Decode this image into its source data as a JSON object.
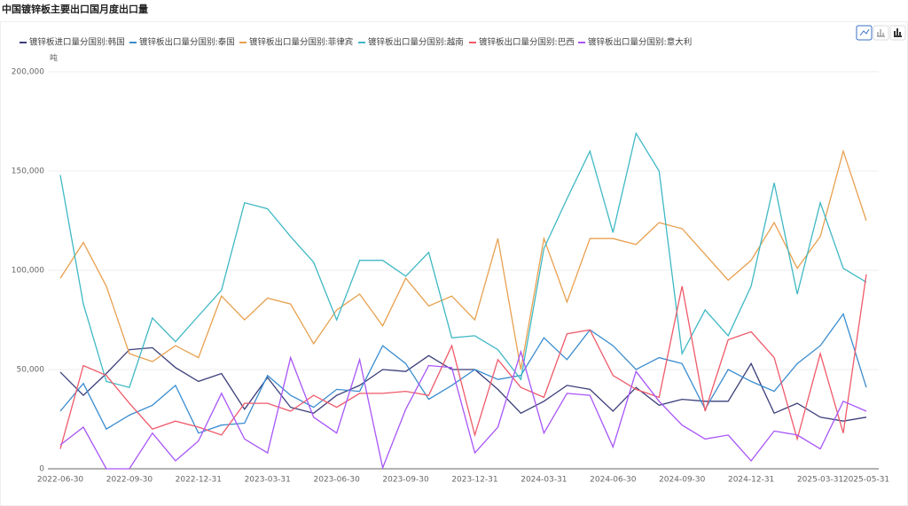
{
  "chart_data": {
    "type": "line",
    "title": "中国镀锌板主要出口国月度出口量",
    "y_unit": "吨",
    "categories": [
      "2022-06-30",
      null,
      null,
      "2022-09-30",
      null,
      null,
      "2022-12-31",
      null,
      null,
      "2023-03-31",
      null,
      null,
      "2023-06-30",
      null,
      null,
      "2023-09-30",
      null,
      null,
      "2023-12-31",
      null,
      null,
      "2024-03-31",
      null,
      null,
      "2024-06-30",
      null,
      null,
      "2024-09-30",
      null,
      null,
      "2024-12-31",
      null,
      null,
      "2025-03-31",
      null,
      "2025-05-31"
    ],
    "series": [
      {
        "name": "镀锌板进口量分国别:韩国",
        "color": "#3b3f7a",
        "values": [
          48700,
          37000,
          48000,
          60000,
          61000,
          51000,
          44000,
          48000,
          30000,
          46000,
          31000,
          28000,
          37000,
          42000,
          50000,
          49000,
          57000,
          50000,
          50000,
          40000,
          28000,
          34000,
          42000,
          40000,
          29000,
          41000,
          32000,
          35000,
          34000,
          34000,
          53000,
          28000,
          33000,
          26000,
          24000,
          26000
        ]
      },
      {
        "name": "镀锌板出口量分国别:泰国",
        "color": "#3a8ccf",
        "values": [
          29000,
          43000,
          20000,
          27000,
          32000,
          42000,
          18000,
          22000,
          23000,
          47000,
          37000,
          31000,
          40000,
          39000,
          62000,
          53000,
          35000,
          42000,
          50000,
          45000,
          47000,
          66000,
          55000,
          70000,
          62000,
          50000,
          56000,
          53000,
          30000,
          50000,
          44000,
          39000,
          53000,
          62000,
          78000,
          41000
        ]
      },
      {
        "name": "镀锌板出口量分国别:菲律宾",
        "color": "#e8a04f",
        "values": [
          96000,
          114000,
          92000,
          58000,
          54000,
          62000,
          56000,
          87000,
          75000,
          86000,
          83000,
          63000,
          80000,
          88000,
          72000,
          96000,
          82000,
          87000,
          75000,
          116000,
          50000,
          116000,
          84000,
          116000,
          116000,
          113000,
          124000,
          121000,
          108000,
          95000,
          105000,
          124000,
          101000,
          117000,
          160000,
          125000
        ]
      },
      {
        "name": "镀锌板出口量分国别:越南",
        "color": "#3fb8c4",
        "values": [
          148000,
          83000,
          44000,
          41000,
          76000,
          64000,
          77000,
          90000,
          134000,
          131000,
          117000,
          104000,
          75000,
          105000,
          105000,
          97000,
          109000,
          66000,
          67000,
          60000,
          45000,
          111000,
          136000,
          160000,
          119000,
          169000,
          150000,
          58000,
          80000,
          67000,
          92000,
          144000,
          88000,
          134000,
          101000,
          94000
        ]
      },
      {
        "name": "镀锌板出口量分国别:巴西",
        "color": "#ef5a6a",
        "values": [
          10000,
          52000,
          47000,
          33000,
          20000,
          24000,
          21000,
          17000,
          33000,
          33000,
          29000,
          37000,
          31000,
          38000,
          38000,
          39000,
          37000,
          62000,
          17000,
          55000,
          41000,
          36000,
          68000,
          70000,
          47000,
          40000,
          36000,
          92000,
          29000,
          65000,
          69000,
          56000,
          15000,
          58000,
          18000,
          98000
        ]
      },
      {
        "name": "镀锌板出口量分国别:意大利",
        "color": "#a855f7",
        "values": [
          12000,
          21000,
          0,
          0,
          18000,
          4000,
          14000,
          38000,
          15000,
          8000,
          56000,
          26000,
          18000,
          55000,
          500,
          30000,
          52000,
          51000,
          8000,
          21000,
          59000,
          18000,
          38000,
          37000,
          11000,
          49000,
          34000,
          22000,
          15000,
          17000,
          4000,
          19000,
          17000,
          10000,
          34000,
          29000
        ]
      }
    ],
    "ylim": [
      0,
      200000
    ],
    "yticks": [
      {
        "value": 0,
        "label": "0"
      },
      {
        "value": 50000,
        "label": "50,000"
      },
      {
        "value": 100000,
        "label": "100,000"
      },
      {
        "value": 150000,
        "label": "150,000"
      },
      {
        "value": 200000,
        "label": "200,000"
      }
    ],
    "grid": true
  }
}
